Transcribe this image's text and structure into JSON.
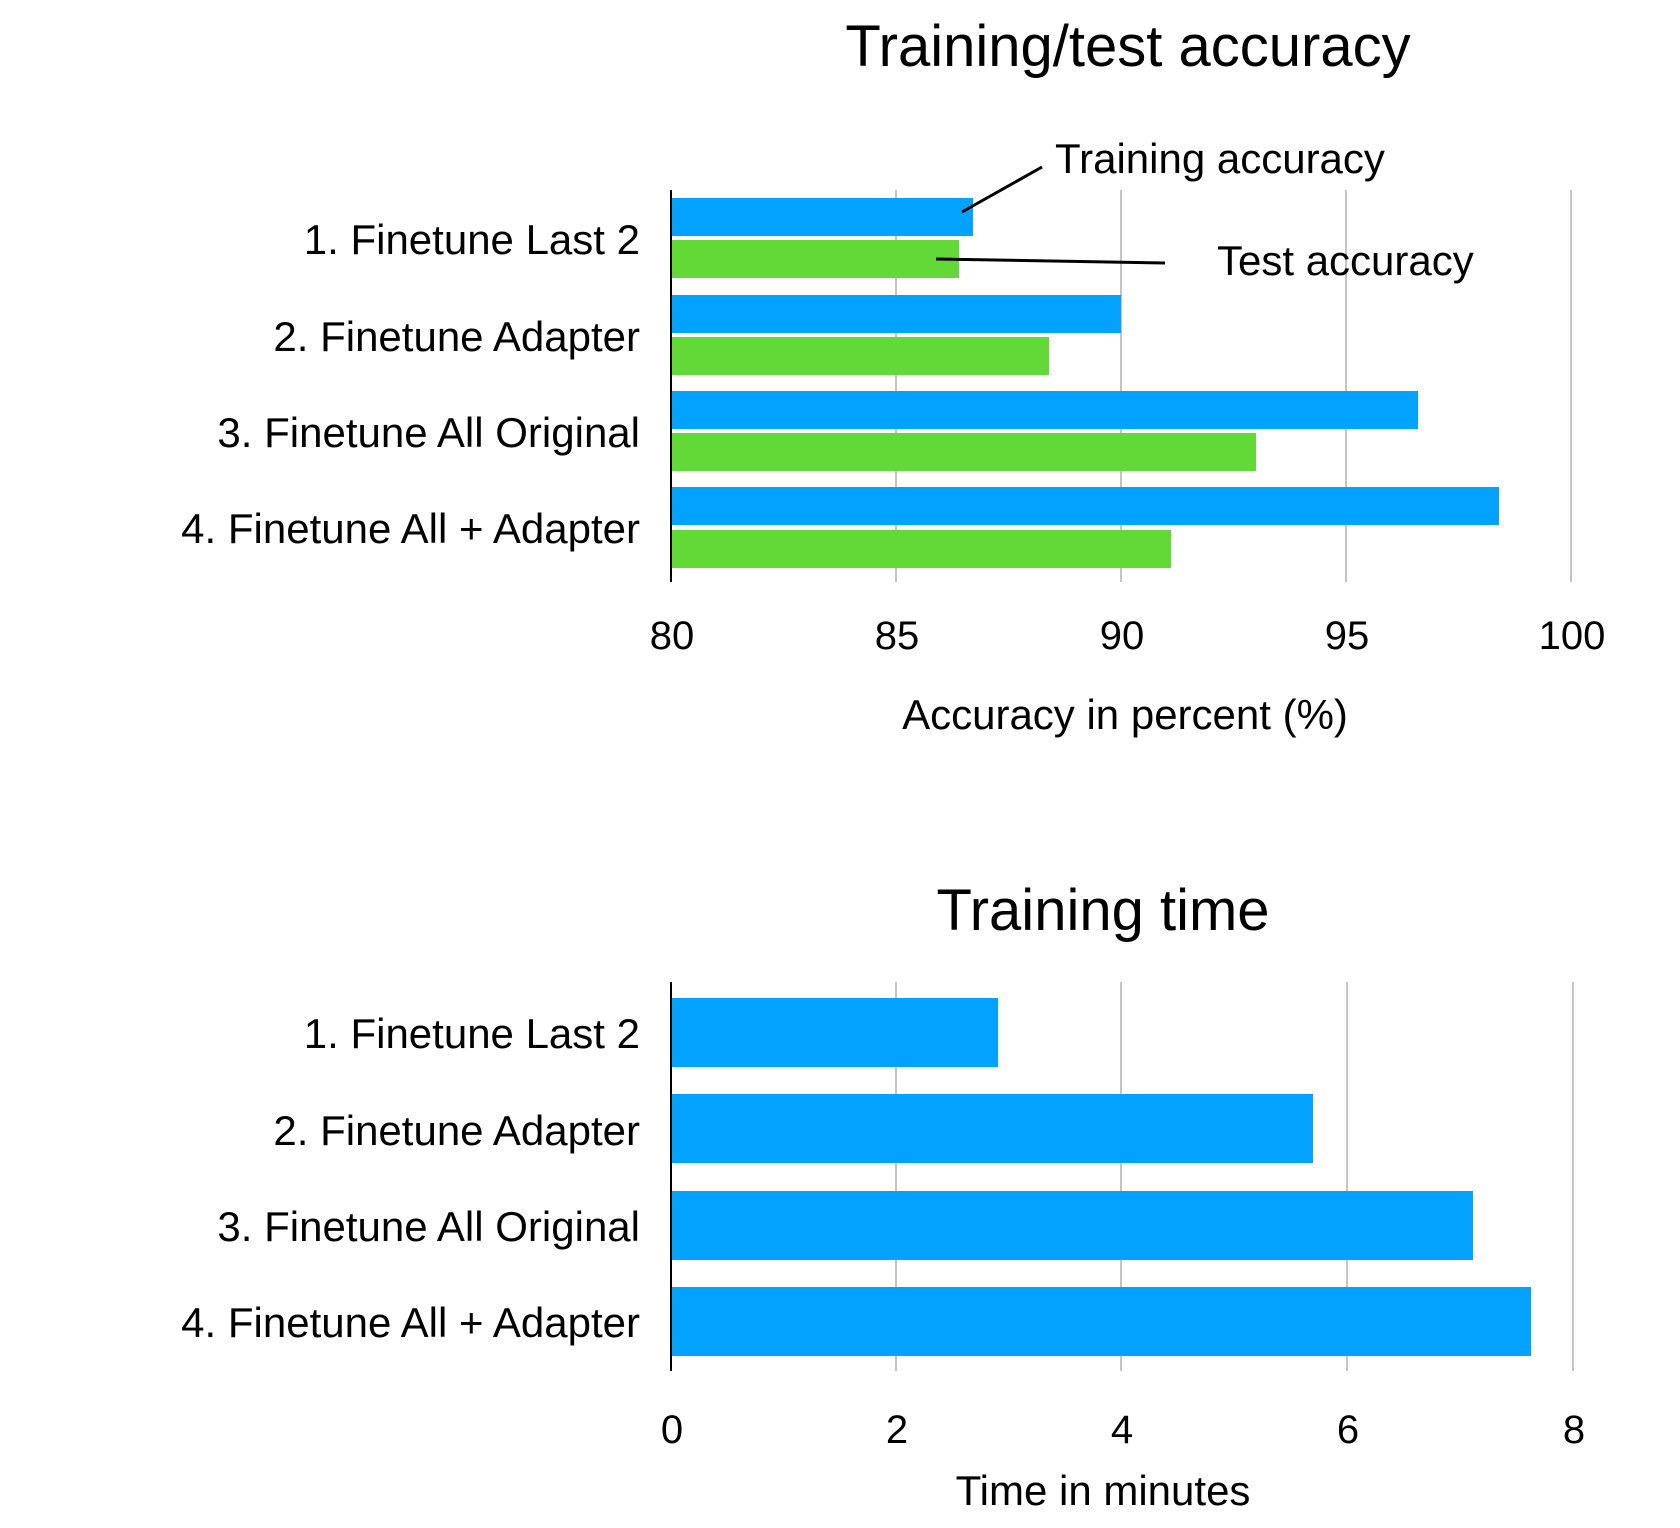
{
  "chart_data": [
    {
      "type": "bar",
      "orientation": "horizontal",
      "title": "Training/test accuracy",
      "xlabel": "Accuracy in percent (%)",
      "ylabel": "",
      "categories": [
        "1. Finetune Last 2",
        "2. Finetune Adapter",
        "3. Finetune All Original",
        "4. Finetune All + Adapter"
      ],
      "series": [
        {
          "name": "Training accuracy",
          "color": "#03a2fe",
          "values": [
            86.7,
            90.0,
            96.6,
            98.4
          ]
        },
        {
          "name": "Test accuracy",
          "color": "#62d937",
          "values": [
            86.4,
            88.4,
            93.0,
            91.1
          ]
        }
      ],
      "xlim": [
        80,
        100
      ],
      "xticks": [
        "80",
        "85",
        "90",
        "95",
        "100"
      ],
      "grid": "vertical",
      "annotations": [
        "Training accuracy",
        "Test accuracy"
      ]
    },
    {
      "type": "bar",
      "orientation": "horizontal",
      "title": "Training time",
      "xlabel": "Time in minutes",
      "ylabel": "",
      "categories": [
        "1. Finetune Last 2",
        "2. Finetune Adapter",
        "3. Finetune All Original",
        "4. Finetune All + Adapter"
      ],
      "series": [
        {
          "name": "Training time",
          "color": "#03a2fe",
          "values": [
            2.9,
            5.7,
            7.12,
            7.63
          ]
        }
      ],
      "xlim": [
        0,
        8
      ],
      "xticks": [
        "0",
        "2",
        "4",
        "6",
        "8"
      ],
      "grid": "vertical"
    }
  ],
  "charts": {
    "top": {
      "title": "Training/test accuracy",
      "xlabel": "Accuracy in percent (%)",
      "categories": [
        "1. Finetune Last 2",
        "2. Finetune Adapter",
        "3. Finetune All Original",
        "4. Finetune All + Adapter"
      ],
      "ticks": [
        "80",
        "85",
        "90",
        "95",
        "100"
      ],
      "annotation_train": "Training accuracy",
      "annotation_test": "Test accuracy"
    },
    "bottom": {
      "title": "Training time",
      "xlabel": "Time in minutes",
      "categories": [
        "1. Finetune Last 2",
        "2. Finetune Adapter",
        "3. Finetune All Original",
        "4. Finetune All + Adapter"
      ],
      "ticks": [
        "0",
        "2",
        "4",
        "6",
        "8"
      ]
    }
  },
  "colors": {
    "training": "#03a2fe",
    "test": "#62d937",
    "grid": "#c4c4c4",
    "axis": "#000000"
  }
}
